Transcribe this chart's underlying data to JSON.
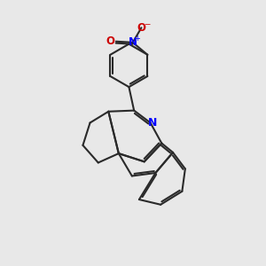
{
  "bg_color": "#e8e8e8",
  "bond_lw": 1.5,
  "bond_color": "#2a2a2a",
  "N_color": "#0000ff",
  "O_color": "#cc0000",
  "font_size": 8.5,
  "xlim": [
    0,
    10
  ],
  "ylim": [
    0,
    13
  ]
}
